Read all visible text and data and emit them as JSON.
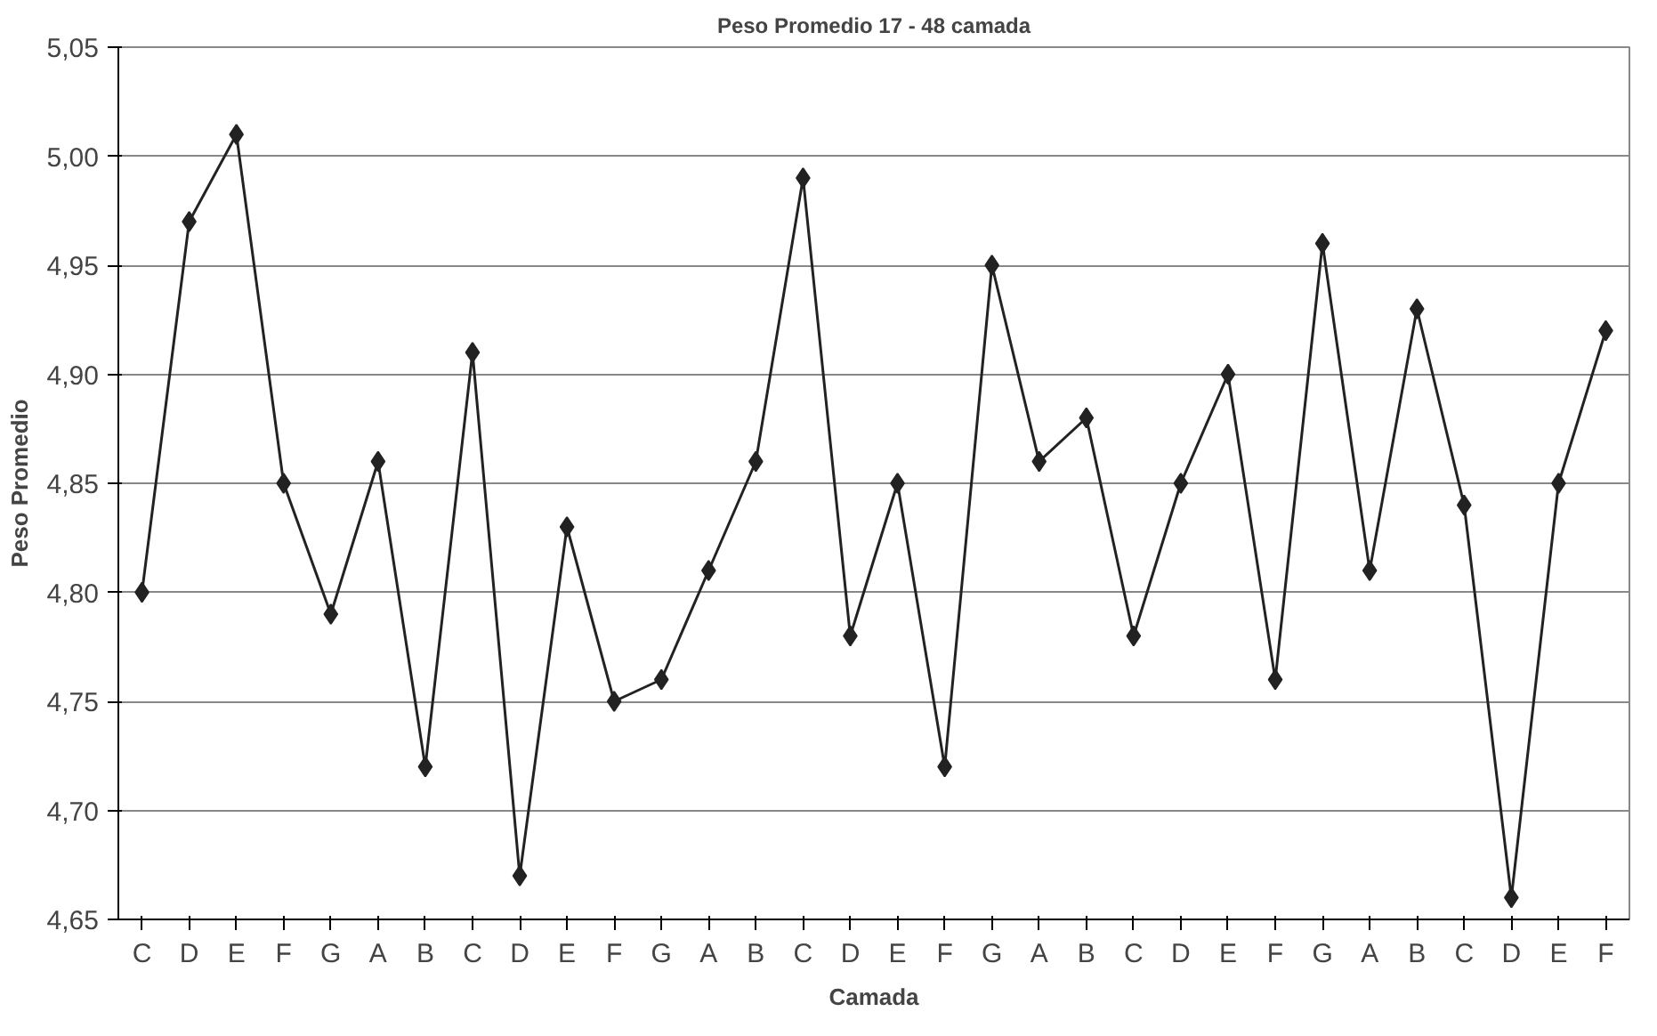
{
  "chart_data": {
    "type": "line",
    "title": "Peso Promedio 17 - 48 camada",
    "xlabel": "Camada",
    "ylabel": "Peso Promedio",
    "categories": [
      "C",
      "D",
      "E",
      "F",
      "G",
      "A",
      "B",
      "C",
      "D",
      "E",
      "F",
      "G",
      "A",
      "B",
      "C",
      "D",
      "E",
      "F",
      "G",
      "A",
      "B",
      "C",
      "D",
      "E",
      "F",
      "G",
      "A",
      "B",
      "C",
      "D",
      "E",
      "F"
    ],
    "series": [
      {
        "color": "#222222",
        "values": [
          4.8,
          4.97,
          5.01,
          4.85,
          4.79,
          4.86,
          4.72,
          4.91,
          4.67,
          4.83,
          4.75,
          4.76,
          4.81,
          4.86,
          4.99,
          4.78,
          4.85,
          4.72,
          4.95,
          4.86,
          4.88,
          4.78,
          4.85,
          4.9,
          4.76,
          4.96,
          4.81,
          4.93,
          4.84,
          4.66,
          4.85,
          4.92
        ]
      }
    ],
    "ylim": [
      4.65,
      5.05
    ],
    "yticks": [
      {
        "value": 4.65,
        "label": "4,65"
      },
      {
        "value": 4.7,
        "label": "4,70"
      },
      {
        "value": 4.75,
        "label": "4,75"
      },
      {
        "value": 4.8,
        "label": "4,80"
      },
      {
        "value": 4.85,
        "label": "4,85"
      },
      {
        "value": 4.9,
        "label": "4,90"
      },
      {
        "value": 4.95,
        "label": "4,95"
      },
      {
        "value": 5.0,
        "label": "5,00"
      },
      {
        "value": 5.05,
        "label": "5,05"
      }
    ],
    "grid": "y",
    "marker": "diamond",
    "line_style": "solid"
  }
}
